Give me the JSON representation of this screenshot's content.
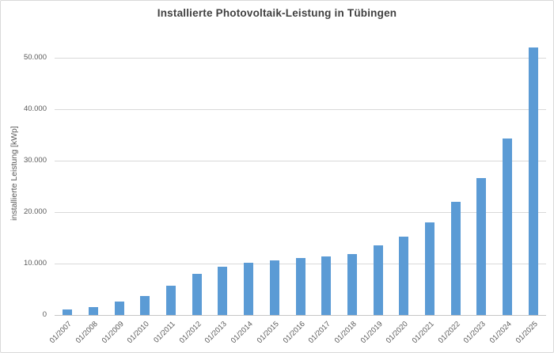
{
  "chart": {
    "title": "Installierte Photovoltaik-Leistung in Tübingen",
    "y_axis_title": "installierte Leistung [kWp]"
  },
  "colors": {
    "bar": "#5b9bd5",
    "gridline": "#d9d9d9",
    "axis_line": "#c6c6c6",
    "axis_text": "#595959",
    "title_text": "#404040",
    "frame_border": "#d9d9d9"
  },
  "chart_data": {
    "type": "bar",
    "title": "Installierte Photovoltaik-Leistung in Tübingen",
    "xlabel": "",
    "ylabel": "installierte Leistung [kWp]",
    "categories": [
      "01/2007",
      "01/2008",
      "01/2009",
      "01/2010",
      "01/2011",
      "01/2012",
      "01/2013",
      "01/2014",
      "01/2015",
      "01/2016",
      "01/2017",
      "01/2018",
      "01/2019",
      "01/2020",
      "01/2021",
      "01/2022",
      "01/2023",
      "01/2024",
      "01/2025"
    ],
    "values": [
      1050,
      1500,
      2550,
      3700,
      5750,
      7950,
      9350,
      10100,
      10650,
      11050,
      11350,
      11800,
      13500,
      15200,
      18000,
      22000,
      26600,
      34300,
      52100
    ],
    "ylim": [
      0,
      55000
    ],
    "y_ticks": [
      0,
      10000,
      20000,
      30000,
      40000,
      50000
    ],
    "y_tick_labels": [
      "0",
      "10.000",
      "20.000",
      "30.000",
      "40.000",
      "50.000"
    ],
    "grid": true,
    "legend": "none",
    "bar_color": "#5b9bd5"
  }
}
